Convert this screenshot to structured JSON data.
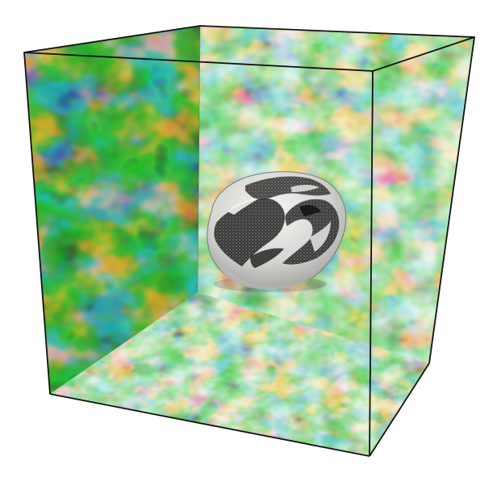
{
  "colors": {
    "background": "#ffffff",
    "edge": "#111111",
    "field_palette": [
      "#14287a",
      "#1f5fb0",
      "#2c9fb0",
      "#4fb84a",
      "#cfc92e",
      "#e8892b",
      "#d8322a"
    ],
    "object_fill": "#d9d9d6",
    "object_dark": "#151515"
  }
}
